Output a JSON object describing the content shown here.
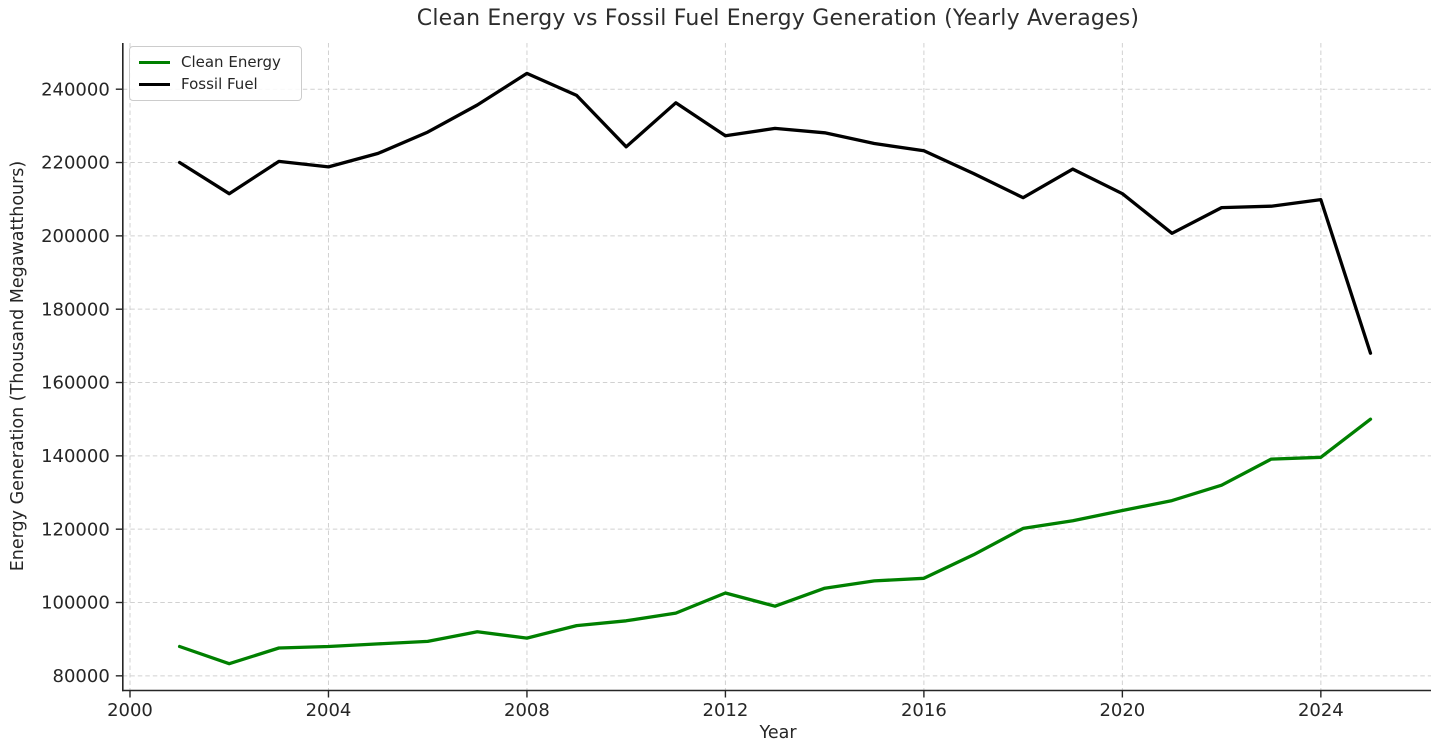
{
  "chart_data": {
    "type": "line",
    "title": "Clean Energy vs Fossil Fuel Energy Generation (Yearly Averages)",
    "xlabel": "Year",
    "ylabel": "Energy Generation (Thousand Megawatthours)",
    "x": [
      2001,
      2002,
      2003,
      2004,
      2005,
      2006,
      2007,
      2008,
      2009,
      2010,
      2011,
      2012,
      2013,
      2014,
      2015,
      2016,
      2017,
      2018,
      2019,
      2020,
      2021,
      2022,
      2023,
      2024,
      2025
    ],
    "series": [
      {
        "name": "Clean Energy",
        "color": "#008000",
        "values": [
          88000,
          83300,
          87600,
          88000,
          88700,
          89400,
          92000,
          90300,
          93700,
          95000,
          97100,
          102600,
          99000,
          103900,
          105900,
          106600,
          113000,
          120200,
          122300,
          125100,
          127800,
          132000,
          139100,
          139600,
          150000
        ]
      },
      {
        "name": "Fossil Fuel",
        "color": "#000000",
        "values": [
          220000,
          211500,
          220300,
          218800,
          222500,
          228300,
          235700,
          244300,
          238300,
          224300,
          236300,
          227300,
          229300,
          228100,
          225200,
          223200,
          217000,
          210400,
          218200,
          211500,
          200700,
          207700,
          208100,
          209900,
          168000
        ]
      }
    ],
    "xlim": [
      1999.855,
      2026.22
    ],
    "ylim": [
      76000,
      252600
    ],
    "xticks": [
      2000,
      2004,
      2008,
      2012,
      2016,
      2020,
      2024
    ],
    "yticks": [
      80000,
      100000,
      120000,
      140000,
      160000,
      180000,
      200000,
      220000,
      240000
    ],
    "grid": {
      "on": true,
      "style": "dashed",
      "color": "#c9c9c9"
    },
    "legend": {
      "position": "upper-left",
      "entries": [
        "Clean Energy",
        "Fossil Fuel"
      ]
    },
    "text_color": "#262626",
    "spine_color": "#262626"
  }
}
